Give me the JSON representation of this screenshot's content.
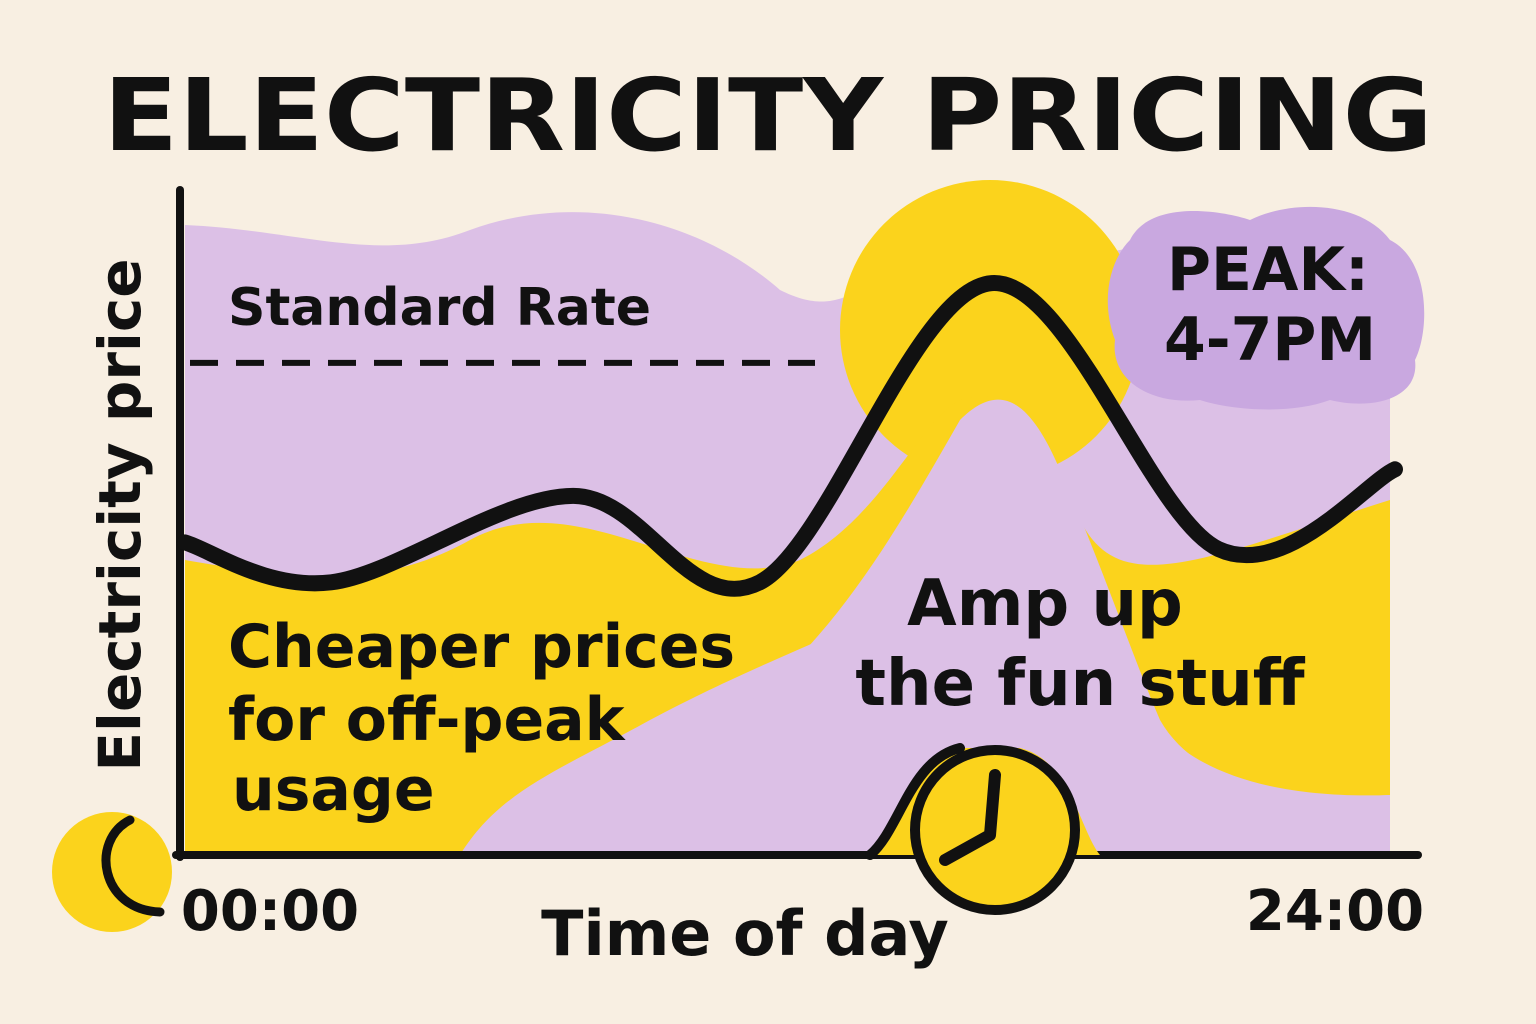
{
  "chart_data": {
    "type": "line",
    "title": "ELECTRICITY PRICING",
    "xlabel": "Time of day",
    "ylabel": "Electricity price",
    "x_tick_labels": [
      "00:00",
      "24:00"
    ],
    "xlim": [
      0,
      24
    ],
    "ylim": [
      0,
      100
    ],
    "grid": false,
    "series": [
      {
        "x": [
          0,
          2.9,
          7.7,
          11.4,
          16,
          20.5,
          24
        ],
        "y": [
          47,
          41,
          54,
          41,
          86,
          46,
          58
        ]
      }
    ],
    "reference_line": {
      "label": "Standard Rate",
      "y": 74,
      "style": "dashed"
    },
    "annotations": {
      "peak": "PEAK:\n4-7PM",
      "peak_line1": "PEAK:",
      "peak_line2": "4-7PM",
      "offpeak": [
        "Cheaper prices",
        "for off-peak",
        "usage"
      ],
      "peak_fun": [
        "Amp up",
        "the fun stuff"
      ]
    },
    "colors": {
      "background": "#f8efe2",
      "purple": "#dcc0e6",
      "yellow": "#fbd31c",
      "peak_bubble": "#c9a8e0",
      "line": "#111111"
    },
    "icons": [
      "moon-icon",
      "clock-icon"
    ]
  }
}
